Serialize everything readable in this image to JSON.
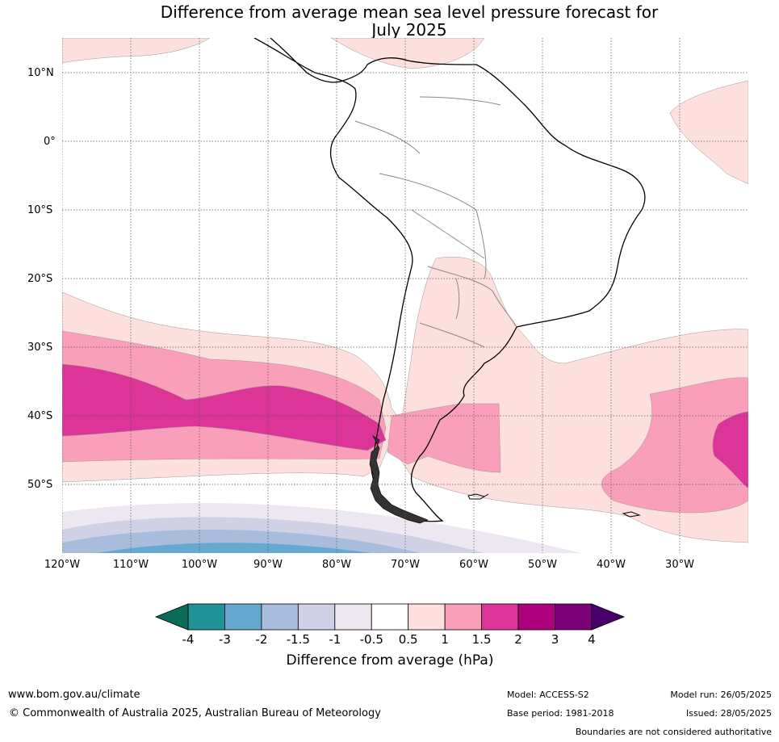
{
  "title_line1": "Difference from average mean sea level pressure forecast for",
  "title_line2": "July 2025",
  "lat_labels": [
    "10°N",
    "0°",
    "10°S",
    "20°S",
    "30°S",
    "40°S",
    "50°S"
  ],
  "lon_labels": [
    "120°W",
    "110°W",
    "100°W",
    "90°W",
    "80°W",
    "70°W",
    "60°W",
    "50°W",
    "40°W",
    "30°W"
  ],
  "colorbar": {
    "ticks": [
      "-4",
      "-3",
      "-2",
      "-1.5",
      "-1",
      "-0.5",
      "0.5",
      "1",
      "1.5",
      "2",
      "3",
      "4"
    ],
    "colors": [
      "#1f9396",
      "#66a9d0",
      "#a8bcdc",
      "#d0d1e6",
      "#ece7f0",
      "#ffffff",
      "#fde0dd",
      "#f99fb9",
      "#dd3497",
      "#ae017e",
      "#7a0177"
    ],
    "under_color": "#0a6b5a",
    "over_color": "#49006a",
    "label": "Difference from average (hPa)"
  },
  "footer": {
    "website": "www.bom.gov.au/climate",
    "copyright": "© Commonwealth of Australia 2025, Australian Bureau of Meteorology",
    "model": "Model: ACCESS-S2",
    "base_period": "Base period: 1981-2018",
    "model_run": "Model run: 26/05/2025",
    "issued": "Issued: 28/05/2025",
    "disclaimer": "Boundaries are not considered authoritative"
  }
}
